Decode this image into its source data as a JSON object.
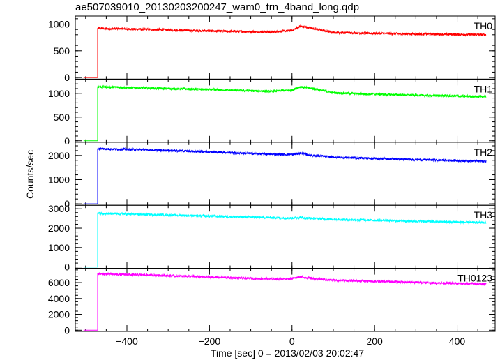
{
  "title": "ae507039010_20130203200247_wam0_trn_4band_long.qdp",
  "ylabel": "Counts/sec",
  "xlabel": "Time [sec] 0 = 2013/02/03 20:02:47",
  "chart_data": {
    "type": "line",
    "title": "ae507039010_20130203200247_wam0_trn_4band_long.qdp",
    "xlabel": "Time [sec] 0 = 2013/02/03 20:02:47",
    "ylabel": "Counts/sec",
    "xlim": [
      -525,
      492
    ],
    "x_ticks": [
      -400,
      -200,
      0,
      200,
      400
    ],
    "x_tick_labels": [
      "−400",
      "−200",
      "0",
      "200",
      "400"
    ],
    "grid": false,
    "panels": [
      {
        "name": "TH0",
        "color": "#ff0000",
        "ylim": [
          -30,
          1150
        ],
        "y_ticks": [
          0,
          500,
          1000
        ],
        "y_tick_labels": [
          "0",
          "500",
          "1000"
        ],
        "pre_level": 0,
        "points": [
          [
            -471,
            920
          ],
          [
            -350,
            900
          ],
          [
            -200,
            870
          ],
          [
            -50,
            850
          ],
          [
            0,
            880
          ],
          [
            20,
            960
          ],
          [
            50,
            920
          ],
          [
            100,
            840
          ],
          [
            250,
            820
          ],
          [
            470,
            800
          ]
        ]
      },
      {
        "name": "TH1",
        "color": "#00ff00",
        "ylim": [
          -30,
          1300
        ],
        "y_ticks": [
          0,
          500,
          1000
        ],
        "y_tick_labels": [
          "0",
          "500",
          "1000"
        ],
        "pre_level": 0,
        "points": [
          [
            -471,
            1140
          ],
          [
            -350,
            1110
          ],
          [
            -200,
            1080
          ],
          [
            -50,
            1040
          ],
          [
            0,
            1070
          ],
          [
            20,
            1140
          ],
          [
            50,
            1100
          ],
          [
            100,
            1010
          ],
          [
            250,
            970
          ],
          [
            470,
            930
          ]
        ]
      },
      {
        "name": "TH2",
        "color": "#0000ff",
        "ylim": [
          -60,
          2550
        ],
        "y_ticks": [
          0,
          1000,
          2000
        ],
        "y_tick_labels": [
          "0",
          "1000",
          "2000"
        ],
        "pre_level": 0,
        "points": [
          [
            -471,
            2280
          ],
          [
            -350,
            2230
          ],
          [
            -200,
            2150
          ],
          [
            -50,
            2050
          ],
          [
            0,
            2040
          ],
          [
            20,
            2090
          ],
          [
            50,
            2000
          ],
          [
            100,
            1930
          ],
          [
            250,
            1850
          ],
          [
            470,
            1760
          ]
        ]
      },
      {
        "name": "TH3",
        "color": "#00ffff",
        "ylim": [
          -70,
          3180
        ],
        "y_ticks": [
          0,
          1000,
          2000,
          3000
        ],
        "y_tick_labels": [
          "0",
          "1000",
          "2000",
          "3000"
        ],
        "pre_level": 0,
        "points": [
          [
            -471,
            2760
          ],
          [
            -350,
            2700
          ],
          [
            -200,
            2620
          ],
          [
            -50,
            2540
          ],
          [
            0,
            2520
          ],
          [
            20,
            2550
          ],
          [
            50,
            2500
          ],
          [
            100,
            2450
          ],
          [
            250,
            2380
          ],
          [
            470,
            2280
          ]
        ]
      },
      {
        "name": "TH0123",
        "color": "#ff00ff",
        "ylim": [
          -150,
          7800
        ],
        "y_ticks": [
          0,
          2000,
          4000,
          6000
        ],
        "y_tick_labels": [
          "0",
          "2000",
          "4000",
          "6000"
        ],
        "pre_level": 0,
        "points": [
          [
            -471,
            7100
          ],
          [
            -350,
            6950
          ],
          [
            -200,
            6700
          ],
          [
            -50,
            6450
          ],
          [
            0,
            6500
          ],
          [
            20,
            6750
          ],
          [
            50,
            6500
          ],
          [
            100,
            6300
          ],
          [
            250,
            6100
          ],
          [
            470,
            5800
          ]
        ]
      }
    ]
  }
}
